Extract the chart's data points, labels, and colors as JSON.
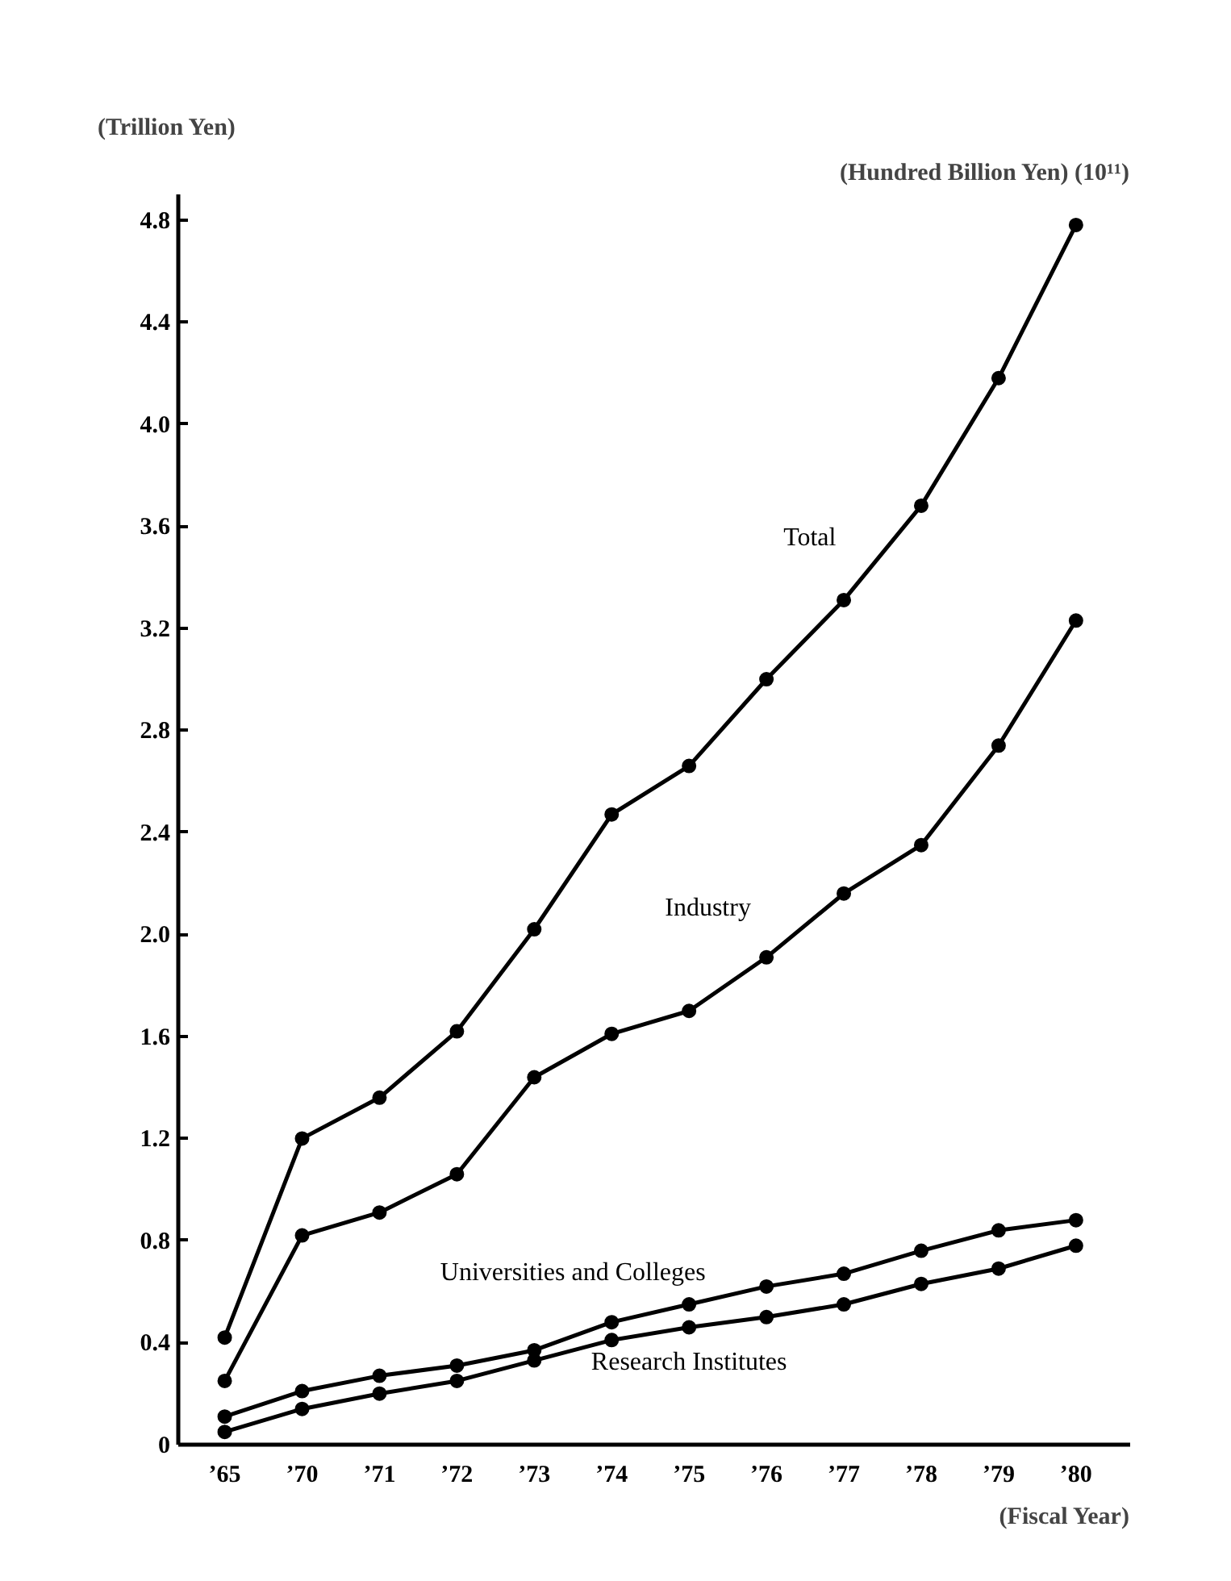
{
  "chart_data": {
    "type": "line",
    "ylabel": "(Trillion Yen)",
    "y2label": "(Hundred Billion Yen) (10¹¹)",
    "xlabel": "(Fiscal Year)",
    "categories": [
      "’65",
      "’70",
      "’71",
      "’72",
      "’73",
      "’74",
      "’75",
      "’76",
      "’77",
      "’78",
      "’79",
      "’80"
    ],
    "series": [
      {
        "name": "Total",
        "color": "#000000",
        "values": [
          0.42,
          1.2,
          1.36,
          1.62,
          2.02,
          2.47,
          2.66,
          3.0,
          3.31,
          3.68,
          4.18,
          4.78
        ]
      },
      {
        "name": "Industry",
        "color": "#000000",
        "values": [
          0.25,
          0.82,
          0.91,
          1.06,
          1.44,
          1.61,
          1.7,
          1.91,
          2.16,
          2.35,
          2.74,
          3.23
        ]
      },
      {
        "name": "Universities and Colleges",
        "color": "#000000",
        "values": [
          0.11,
          0.21,
          0.27,
          0.31,
          0.37,
          0.48,
          0.55,
          0.62,
          0.67,
          0.76,
          0.84,
          0.88
        ]
      },
      {
        "name": "Research Institutes",
        "color": "#000000",
        "values": [
          0.05,
          0.14,
          0.2,
          0.25,
          0.33,
          0.41,
          0.46,
          0.5,
          0.55,
          0.63,
          0.69,
          0.78
        ]
      }
    ],
    "ylim": [
      0,
      4.9
    ],
    "yticks": [
      0,
      0.4,
      0.8,
      1.2,
      1.6,
      {
        "value": 2,
        "label": "2.0"
      },
      2.4,
      2.8,
      3.2,
      3.6,
      {
        "value": 4,
        "label": "4.0"
      },
      4.4,
      4.8
    ],
    "marker": "circle",
    "line_style": "solid",
    "grid": false,
    "legend": false
  }
}
